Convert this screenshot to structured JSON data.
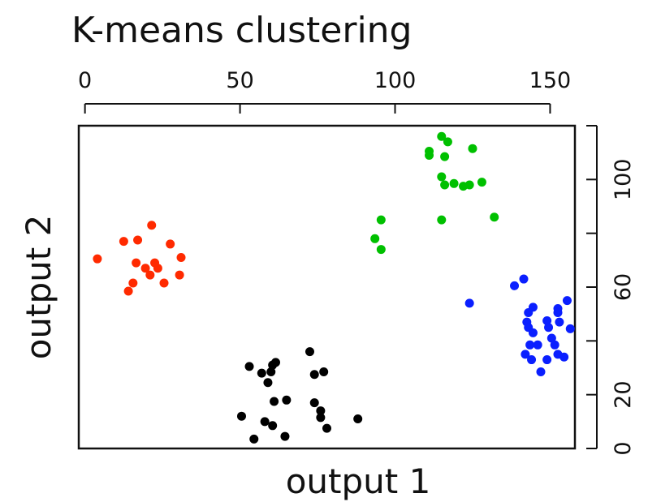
{
  "chart_data": {
    "type": "scatter",
    "title": "K-means clustering",
    "xlabel": "output 1",
    "ylabel": "output 2",
    "xlim": [
      -2,
      158
    ],
    "ylim": [
      0,
      120
    ],
    "x_ticks": [
      "0",
      "50",
      "100",
      "150"
    ],
    "x_tick_values": [
      0,
      50,
      100,
      150
    ],
    "y_ticks": [
      "0",
      "20",
      "60",
      "100"
    ],
    "y_tick_values": [
      0,
      20,
      60,
      100
    ],
    "x_axis_position": "top",
    "y_axis_position": "right",
    "grid": false,
    "legend": "none",
    "series": [
      {
        "color": "#ff2a00",
        "points": [
          [
            4,
            70.5
          ],
          [
            12.5,
            77
          ],
          [
            17,
            77.5
          ],
          [
            21.5,
            83
          ],
          [
            27.5,
            76
          ],
          [
            31,
            71
          ],
          [
            16.5,
            69
          ],
          [
            19.5,
            67
          ],
          [
            22.5,
            69
          ],
          [
            23.5,
            67
          ],
          [
            21,
            64.5
          ],
          [
            30.5,
            64.5
          ],
          [
            25.5,
            61.5
          ],
          [
            15.5,
            61.5
          ],
          [
            14,
            58.5
          ]
        ]
      },
      {
        "color": "#00c000",
        "points": [
          [
            115,
            116
          ],
          [
            117,
            114
          ],
          [
            111,
            110.5
          ],
          [
            111,
            109
          ],
          [
            116,
            108.5
          ],
          [
            125,
            111.5
          ],
          [
            115,
            101
          ],
          [
            116,
            98
          ],
          [
            119,
            98.5
          ],
          [
            122,
            97.5
          ],
          [
            124,
            98
          ],
          [
            128,
            99
          ],
          [
            95.5,
            85
          ],
          [
            115,
            85
          ],
          [
            132,
            86
          ],
          [
            93.5,
            78
          ],
          [
            95.5,
            74
          ]
        ]
      },
      {
        "color": "#0a1fff",
        "points": [
          [
            138.5,
            60.5
          ],
          [
            141.5,
            63
          ],
          [
            124,
            54
          ],
          [
            155.5,
            55
          ],
          [
            144.5,
            52.5
          ],
          [
            143,
            50.5
          ],
          [
            152.5,
            52
          ],
          [
            152.5,
            50.5
          ],
          [
            149,
            47.5
          ],
          [
            153,
            47
          ],
          [
            142.5,
            47
          ],
          [
            143,
            45
          ],
          [
            149.5,
            45
          ],
          [
            156.5,
            44.5
          ],
          [
            144.5,
            43
          ],
          [
            150.5,
            41
          ],
          [
            143.5,
            38.5
          ],
          [
            146,
            38.5
          ],
          [
            151.5,
            38.5
          ],
          [
            142,
            35
          ],
          [
            152.5,
            35
          ],
          [
            154.5,
            34
          ],
          [
            144,
            33
          ],
          [
            149,
            33
          ],
          [
            147,
            28.5
          ]
        ]
      },
      {
        "color": "#000000",
        "points": [
          [
            72.5,
            36
          ],
          [
            61.5,
            32
          ],
          [
            60.5,
            31
          ],
          [
            53,
            30.5
          ],
          [
            57,
            28
          ],
          [
            60,
            28.5
          ],
          [
            74,
            27.5
          ],
          [
            77,
            28.5
          ],
          [
            59,
            24.5
          ],
          [
            65,
            18
          ],
          [
            61,
            17.5
          ],
          [
            74,
            17
          ],
          [
            76,
            14
          ],
          [
            50.5,
            12
          ],
          [
            58,
            10
          ],
          [
            76,
            11.5
          ],
          [
            88,
            11
          ],
          [
            60.5,
            8.5
          ],
          [
            78,
            7.5
          ],
          [
            64.5,
            4.5
          ],
          [
            54.5,
            3.5
          ]
        ]
      }
    ]
  }
}
